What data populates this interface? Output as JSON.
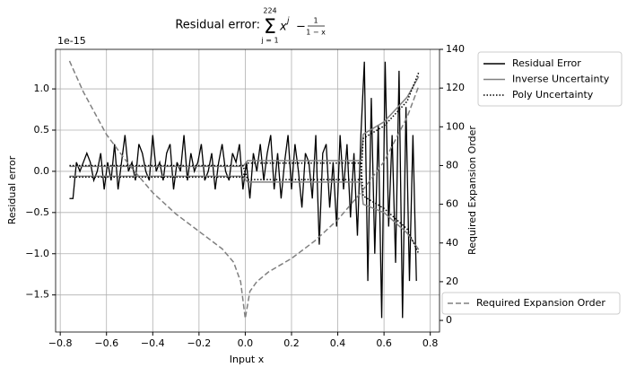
{
  "chart_data": {
    "type": "line",
    "title": {
      "prefix": "Residual error:",
      "symbol": "Σ",
      "sum_upper": "224",
      "sum_lower": "j = 1",
      "base": "x",
      "exponent": "j",
      "operator": "−",
      "numerator": "1",
      "denominator": "1 − x"
    },
    "xlabel": "Input x",
    "ylabel": "Residual error",
    "y2label": "Required Expansion Order",
    "y_offset_label": "1e-15",
    "xlim": [
      -0.82,
      0.84
    ],
    "ylim": [
      -1.95,
      1.48
    ],
    "y2lim": [
      -6,
      140
    ],
    "xticks": [
      {
        "value": -0.8,
        "label": "−0.8"
      },
      {
        "value": -0.6,
        "label": "−0.6"
      },
      {
        "value": -0.4,
        "label": "−0.4"
      },
      {
        "value": -0.2,
        "label": "−0.2"
      },
      {
        "value": 0,
        "label": "0.0"
      },
      0.2,
      0.4,
      0.6,
      0.8
    ],
    "yticks": [
      {
        "value": -1.5,
        "label": "−1.5"
      },
      {
        "value": -1,
        "label": "−1.0"
      },
      {
        "value": -0.5,
        "label": "−0.5"
      },
      {
        "value": 0,
        "label": "0.0"
      },
      0.5,
      {
        "value": 1,
        "label": "1.0"
      }
    ],
    "y2ticks": [
      0,
      20,
      40,
      60,
      80,
      100,
      120,
      140
    ],
    "grid": true,
    "x": [
      -0.76,
      -0.745,
      -0.73,
      -0.715,
      -0.7,
      -0.685,
      -0.67,
      -0.655,
      -0.64,
      -0.625,
      -0.61,
      -0.595,
      -0.58,
      -0.565,
      -0.55,
      -0.535,
      -0.52,
      -0.505,
      -0.49,
      -0.475,
      -0.46,
      -0.445,
      -0.43,
      -0.415,
      -0.4,
      -0.385,
      -0.37,
      -0.355,
      -0.34,
      -0.325,
      -0.31,
      -0.295,
      -0.28,
      -0.265,
      -0.25,
      -0.235,
      -0.22,
      -0.205,
      -0.19,
      -0.175,
      -0.16,
      -0.145,
      -0.13,
      -0.115,
      -0.1,
      -0.085,
      -0.07,
      -0.055,
      -0.04,
      -0.025,
      -0.01,
      0.005,
      0.02,
      0.035,
      0.05,
      0.065,
      0.08,
      0.095,
      0.11,
      0.125,
      0.14,
      0.155,
      0.17,
      0.185,
      0.2,
      0.215,
      0.23,
      0.245,
      0.26,
      0.275,
      0.29,
      0.305,
      0.32,
      0.335,
      0.35,
      0.365,
      0.38,
      0.395,
      0.41,
      0.425,
      0.44,
      0.455,
      0.47,
      0.485,
      0.5,
      0.515,
      0.53,
      0.545,
      0.56,
      0.575,
      0.59,
      0.605,
      0.62,
      0.635,
      0.65,
      0.665,
      0.68,
      0.695,
      0.71,
      0.725,
      0.74
    ],
    "series": [
      {
        "name": "Residual Error",
        "color": "#000000",
        "style": "solid",
        "values": [
          -0.33,
          -0.33,
          0.11,
          0,
          0.11,
          0.22,
          0.11,
          -0.11,
          0,
          0.22,
          -0.22,
          0.11,
          -0.11,
          0.33,
          -0.22,
          0.11,
          0.44,
          0,
          0.11,
          -0.11,
          0.33,
          0.22,
          0,
          -0.11,
          0.44,
          0,
          0.11,
          -0.11,
          0.22,
          0.33,
          -0.22,
          0.11,
          0,
          0.44,
          -0.11,
          0.22,
          0,
          0.11,
          0.33,
          -0.11,
          0,
          0.22,
          -0.22,
          0.11,
          0.33,
          0,
          -0.11,
          0.22,
          0.11,
          0.33,
          -0.22,
          0.11,
          -0.33,
          0.22,
          0,
          0.33,
          -0.11,
          0.22,
          0.44,
          -0.22,
          0.22,
          -0.33,
          0.11,
          0.44,
          -0.22,
          0.33,
          0,
          -0.44,
          0.22,
          0.11,
          -0.33,
          0.44,
          -0.89,
          0.22,
          0.33,
          -0.44,
          0.11,
          -0.67,
          0.44,
          -0.22,
          0.33,
          -0.56,
          0.22,
          -0.78,
          0.44,
          1.33,
          -1.33,
          0.89,
          -1,
          0.56,
          -1.78,
          1.33,
          -0.67,
          0.44,
          -1.11,
          1.22,
          -1.78,
          0.78,
          -1.33,
          0.44,
          -1.33
        ]
      },
      {
        "name": "Inverse Uncertainty",
        "color": "#808080",
        "style": "solid",
        "x": [
          -0.76,
          -0.5,
          -0.2,
          -0.01,
          0.01,
          0.3,
          0.5,
          0.51,
          0.6,
          0.7,
          0.75
        ],
        "values": [
          0.06,
          0.06,
          0.06,
          0.06,
          0.13,
          0.13,
          0.13,
          0.45,
          0.6,
          0.9,
          1.15
        ],
        "lower_values": [
          -0.06,
          -0.06,
          -0.06,
          -0.06,
          -0.13,
          -0.13,
          -0.13,
          -0.4,
          -0.5,
          -0.75,
          -0.95
        ]
      },
      {
        "name": "Poly Uncertainty",
        "color": "#000000",
        "style": "dotted",
        "x": [
          -0.76,
          -0.5,
          -0.2,
          -0.01,
          0.01,
          0.2,
          0.5,
          0.51,
          0.6,
          0.7,
          0.75
        ],
        "values": [
          0.07,
          0.07,
          0.07,
          0.07,
          -0.1,
          -0.1,
          -0.1,
          0.4,
          0.55,
          0.85,
          1.2
        ],
        "lower_values": [
          -0.07,
          -0.07,
          -0.07,
          -0.07,
          0.1,
          0.1,
          0.1,
          -0.3,
          -0.45,
          -0.7,
          -1
        ]
      },
      {
        "name": "Required Expansion Order",
        "color": "#808080",
        "style": "dashed",
        "axis": "y2",
        "x": [
          -0.76,
          -0.7,
          -0.6,
          -0.5,
          -0.4,
          -0.3,
          -0.2,
          -0.1,
          -0.05,
          -0.02,
          0,
          0.02,
          0.05,
          0.1,
          0.2,
          0.3,
          0.4,
          0.5,
          0.6,
          0.7,
          0.75
        ],
        "values": [
          134,
          118,
          96,
          80,
          66,
          55,
          46,
          37,
          30,
          20,
          1,
          15,
          20,
          25,
          32,
          41,
          52,
          66,
          82,
          105,
          121
        ]
      }
    ]
  }
}
